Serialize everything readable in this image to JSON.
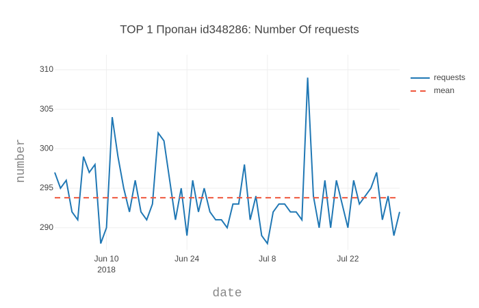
{
  "chart_data": {
    "type": "line",
    "title": "TOP 1 Пропан id348286: Number Of requests",
    "x_title": "date",
    "y_title": "number",
    "x": [
      "2018-06-01",
      "2018-06-02",
      "2018-06-03",
      "2018-06-04",
      "2018-06-05",
      "2018-06-06",
      "2018-06-07",
      "2018-06-08",
      "2018-06-09",
      "2018-06-10",
      "2018-06-11",
      "2018-06-12",
      "2018-06-13",
      "2018-06-14",
      "2018-06-15",
      "2018-06-16",
      "2018-06-17",
      "2018-06-18",
      "2018-06-19",
      "2018-06-20",
      "2018-06-21",
      "2018-06-22",
      "2018-06-23",
      "2018-06-24",
      "2018-06-25",
      "2018-06-26",
      "2018-06-27",
      "2018-06-28",
      "2018-06-29",
      "2018-06-30",
      "2018-07-01",
      "2018-07-02",
      "2018-07-03",
      "2018-07-04",
      "2018-07-05",
      "2018-07-06",
      "2018-07-07",
      "2018-07-08",
      "2018-07-09",
      "2018-07-10",
      "2018-07-11",
      "2018-07-12",
      "2018-07-13",
      "2018-07-14",
      "2018-07-15",
      "2018-07-16",
      "2018-07-17",
      "2018-07-18",
      "2018-07-19",
      "2018-07-20",
      "2018-07-21",
      "2018-07-22",
      "2018-07-23",
      "2018-07-24",
      "2018-07-25",
      "2018-07-26",
      "2018-07-27",
      "2018-07-28",
      "2018-07-29",
      "2018-07-30",
      "2018-07-31"
    ],
    "series": [
      {
        "name": "requests",
        "color": "#1f77b4",
        "values": [
          297,
          295,
          296,
          292,
          291,
          299,
          297,
          298,
          288,
          290,
          304,
          299,
          295,
          292,
          296,
          292,
          291,
          293,
          302,
          301,
          296,
          291,
          295,
          289,
          296,
          292,
          295,
          292,
          291,
          291,
          290,
          293,
          293,
          298,
          291,
          294,
          289,
          288,
          292,
          293,
          293,
          292,
          292,
          291,
          309,
          294,
          290,
          296,
          290,
          296,
          293,
          290,
          296,
          293,
          294,
          295,
          297,
          291,
          294,
          289,
          292
        ]
      },
      {
        "name": "mean",
        "color": "#ef553b",
        "dash": true,
        "value": 293.8
      }
    ],
    "xlim": [
      "2018-06-01",
      "2018-07-31"
    ],
    "xticks": [
      {
        "value": "2018-06-10",
        "label": "Jun 10"
      },
      {
        "value": "2018-06-24",
        "label": "Jun 24"
      },
      {
        "value": "2018-07-08",
        "label": "Jul 8"
      },
      {
        "value": "2018-07-22",
        "label": "Jul 22"
      }
    ],
    "x_year_label": "2018",
    "ylim": [
      287.2,
      311.9
    ],
    "yticks": [
      290,
      295,
      300,
      305,
      310
    ],
    "grid": true,
    "legend": "top-right"
  }
}
